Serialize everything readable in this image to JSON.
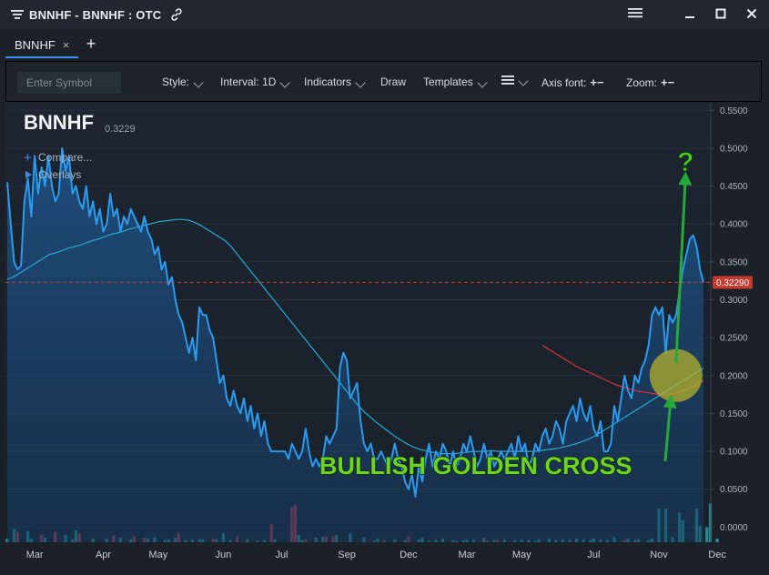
{
  "window": {
    "title": "BNNHF - BNNHF : OTC"
  },
  "tabs": [
    {
      "label": "BNNHF",
      "close": "×"
    }
  ],
  "tab_add": "+",
  "toolbar": {
    "symbol_placeholder": "Enter Symbol",
    "style_label": "Style:",
    "interval_label": "Interval: 1D",
    "indicators_label": "Indicators",
    "draw_label": "Draw",
    "templates_label": "Templates",
    "axis_font_label": "Axis font:",
    "zoom_label": "Zoom:",
    "plus_minus": "+−"
  },
  "chart_header": {
    "symbol": "BNNHF",
    "last": "0.3229",
    "compare_label": "Compare...",
    "overlays_label": "Overlays"
  },
  "colors": {
    "price_line": "#2b9bf0",
    "area_top": "#1f5a94",
    "ma_fast": "#2aa7d9",
    "ma_slow": "#d0303a",
    "price_tag": "#c63a2e",
    "annotation_text": "#6fd322",
    "arrow": "#26a83a",
    "circle": "#b8b52a",
    "volume_up": "#2c8c95",
    "volume_down": "#b0394a"
  },
  "chart_data": {
    "type": "line",
    "title": "BNNHF",
    "last_price_tag": "0.32290",
    "annotation": "BULLISH GOLDEN CROSS",
    "question_mark": "?",
    "ylim": [
      -0.02,
      0.56
    ],
    "yticks": [
      "0.5500",
      "0.5000",
      "0.4500",
      "0.4000",
      "0.3500",
      "0.3000",
      "0.2500",
      "0.2000",
      "0.1500",
      "0.1000",
      "0.0500",
      "0.0000"
    ],
    "ytick_values": [
      0.55,
      0.5,
      0.45,
      0.4,
      0.35,
      0.3,
      0.25,
      0.2,
      0.15,
      0.1,
      0.05,
      0.0
    ],
    "xticks": [
      "Mar",
      "Apr",
      "May",
      "Jun",
      "Jul",
      "Sep",
      "Dec",
      "Mar",
      "May",
      "Jul",
      "Nov",
      "Dec"
    ],
    "xtick_index": [
      8,
      28,
      44,
      63,
      80,
      99,
      117,
      134,
      150,
      171,
      190,
      207
    ],
    "price": [
      0.455,
      0.4,
      0.35,
      0.34,
      0.345,
      0.43,
      0.46,
      0.41,
      0.49,
      0.44,
      0.475,
      0.45,
      0.49,
      0.45,
      0.43,
      0.44,
      0.5,
      0.47,
      0.49,
      0.44,
      0.45,
      0.43,
      0.42,
      0.45,
      0.41,
      0.43,
      0.4,
      0.42,
      0.39,
      0.4,
      0.44,
      0.41,
      0.42,
      0.39,
      0.41,
      0.4,
      0.42,
      0.41,
      0.4,
      0.39,
      0.41,
      0.39,
      0.38,
      0.36,
      0.37,
      0.34,
      0.35,
      0.32,
      0.33,
      0.3,
      0.28,
      0.27,
      0.25,
      0.23,
      0.25,
      0.22,
      0.29,
      0.28,
      0.28,
      0.26,
      0.25,
      0.22,
      0.19,
      0.2,
      0.17,
      0.16,
      0.18,
      0.16,
      0.15,
      0.17,
      0.14,
      0.16,
      0.13,
      0.15,
      0.12,
      0.14,
      0.11,
      0.1,
      0.1,
      0.1,
      0.1,
      0.1,
      0.09,
      0.11,
      0.1,
      0.09,
      0.1,
      0.13,
      0.1,
      0.08,
      0.09,
      0.08,
      0.09,
      0.12,
      0.11,
      0.12,
      0.13,
      0.21,
      0.23,
      0.22,
      0.17,
      0.18,
      0.19,
      0.14,
      0.11,
      0.1,
      0.11,
      0.09,
      0.09,
      0.1,
      0.09,
      0.08,
      0.09,
      0.11,
      0.09,
      0.08,
      0.06,
      0.05,
      0.07,
      0.04,
      0.08,
      0.06,
      0.09,
      0.11,
      0.08,
      0.1,
      0.09,
      0.11,
      0.1,
      0.08,
      0.1,
      0.08,
      0.09,
      0.11,
      0.1,
      0.12,
      0.1,
      0.08,
      0.09,
      0.11,
      0.09,
      0.1,
      0.08,
      0.09,
      0.1,
      0.09,
      0.1,
      0.11,
      0.09,
      0.12,
      0.1,
      0.11,
      0.08,
      0.09,
      0.11,
      0.1,
      0.12,
      0.13,
      0.11,
      0.12,
      0.14,
      0.13,
      0.11,
      0.14,
      0.15,
      0.16,
      0.14,
      0.17,
      0.15,
      0.14,
      0.16,
      0.13,
      0.12,
      0.14,
      0.1,
      0.1,
      0.11,
      0.16,
      0.14,
      0.17,
      0.2,
      0.18,
      0.17,
      0.2,
      0.19,
      0.21,
      0.22,
      0.24,
      0.28,
      0.29,
      0.28,
      0.29,
      0.23,
      0.28,
      0.27,
      0.28,
      0.31,
      0.34,
      0.36,
      0.38,
      0.385,
      0.37,
      0.34,
      0.323
    ],
    "ma_fast": [
      0.327,
      0.33,
      0.335,
      0.34,
      0.345,
      0.35,
      0.355,
      0.36,
      0.362,
      0.365,
      0.368,
      0.37,
      0.372,
      0.375,
      0.378,
      0.38,
      0.383,
      0.386,
      0.388,
      0.39,
      0.393,
      0.395,
      0.397,
      0.399,
      0.401,
      0.403,
      0.404,
      0.405,
      0.406,
      0.406,
      0.405,
      0.402,
      0.398,
      0.393,
      0.388,
      0.383,
      0.378,
      0.37,
      0.36,
      0.35,
      0.34,
      0.33,
      0.32,
      0.31,
      0.3,
      0.29,
      0.28,
      0.27,
      0.26,
      0.25,
      0.24,
      0.23,
      0.22,
      0.21,
      0.2,
      0.19,
      0.18,
      0.17,
      0.16,
      0.152,
      0.145,
      0.138,
      0.132,
      0.126,
      0.12,
      0.115,
      0.11,
      0.106,
      0.103,
      0.101,
      0.099,
      0.098,
      0.097,
      0.097,
      0.097,
      0.098,
      0.099,
      0.1,
      0.1,
      0.1,
      0.101,
      0.1,
      0.1,
      0.1,
      0.1,
      0.1,
      0.1,
      0.1,
      0.101,
      0.102,
      0.103,
      0.104,
      0.106,
      0.108,
      0.11,
      0.113,
      0.116,
      0.12,
      0.125,
      0.13,
      0.135,
      0.14,
      0.145,
      0.15,
      0.155,
      0.16,
      0.165,
      0.17,
      0.175,
      0.18,
      0.185,
      0.19,
      0.195,
      0.2,
      0.205,
      0.21
    ],
    "ma_fast_start": 0,
    "ma_slow": [
      0.24,
      0.236,
      0.232,
      0.228,
      0.224,
      0.22,
      0.216,
      0.212,
      0.209,
      0.206,
      0.203,
      0.2,
      0.197,
      0.194,
      0.191,
      0.188,
      0.186,
      0.184,
      0.182,
      0.18,
      0.179,
      0.178,
      0.177,
      0.176,
      0.175,
      0.175,
      0.175,
      0.176,
      0.178,
      0.18,
      0.183,
      0.186,
      0.19,
      0.193
    ],
    "ma_slow_start": 156,
    "volume": [
      0.005,
      0.0,
      0.018,
      0.014,
      0.0,
      0.0,
      0.015,
      0.005,
      0.0,
      0.0,
      0.01,
      0.006,
      0.0,
      0.0,
      0.014,
      0.0,
      0.0,
      0.01,
      0.0,
      0.004,
      0.016,
      0.012,
      0.0,
      0.0,
      0.0,
      0.005,
      0.0,
      0.0,
      0.0,
      0.005,
      0.0,
      0.009,
      0.0,
      0.006,
      0.0,
      0.0,
      0.004,
      0.008,
      0.0,
      0.0,
      0.006,
      0.005,
      0.0,
      0.007,
      0.0,
      0.0,
      0.003,
      0.004,
      0.0,
      0.006,
      0.012,
      0.0,
      0.003,
      0.0,
      0.004,
      0.0,
      0.004,
      0.004,
      0.0,
      0.0,
      0.005,
      0.004,
      0.0,
      0.012,
      0.0,
      0.003,
      0.0,
      0.008,
      0.0,
      0.0,
      0.004,
      0.0,
      0.0,
      0.002,
      0.0,
      0.003,
      0.0,
      0.024,
      0.004,
      0.0,
      0.0,
      0.0,
      0.0,
      0.047,
      0.05,
      0.01,
      0.003,
      0.004,
      0.0,
      0.0,
      0.006,
      0.0,
      0.007,
      0.007,
      0.0,
      0.008,
      0.01,
      0.0,
      0.0,
      0.0,
      0.012,
      0.0,
      0.0,
      0.0,
      0.006,
      0.0,
      0.0,
      0.002,
      0.005,
      0.0,
      0.003,
      0.0,
      0.0,
      0.004,
      0.0,
      0.0,
      0.003,
      0.008,
      0.0,
      0.0,
      0.004,
      0.006,
      0.0,
      0.002,
      0.0,
      0.003,
      0.0,
      0.005,
      0.0,
      0.0,
      0.003,
      0.002,
      0.0,
      0.003,
      0.004,
      0.0,
      0.004,
      0.0,
      0.0,
      0.006,
      0.002,
      0.0,
      0.003,
      0.003,
      0.0,
      0.004,
      0.0,
      0.0,
      0.003,
      0.0,
      0.004,
      0.0,
      0.003,
      0.0,
      0.002,
      0.004,
      0.0,
      0.0,
      0.005,
      0.0,
      0.003,
      0.0,
      0.004,
      0.0,
      0.003,
      0.0,
      0.005,
      0.0,
      0.004,
      0.0,
      0.003,
      0.005,
      0.0,
      0.004,
      0.0,
      0.003,
      0.0,
      0.007,
      0.0,
      0.0,
      0.003,
      0.005,
      0.0,
      0.003,
      0.004,
      0.0,
      0.0,
      0.003,
      0.005,
      0.0,
      0.045,
      0.0,
      0.045,
      0.0,
      0.007,
      0.0,
      0.04,
      0.03,
      0.0,
      0.0,
      0.0,
      0.045,
      0.022,
      0.0,
      0.02,
      0.052,
      0.0,
      0.005,
      0.0
    ],
    "volume_down": [
      0,
      0,
      0,
      1,
      0,
      0,
      0,
      0,
      0,
      0,
      1,
      0,
      0,
      0,
      1,
      0,
      0,
      0,
      0,
      0,
      0,
      1,
      0,
      0,
      0,
      0,
      0,
      0,
      0,
      0,
      0,
      1,
      0,
      0,
      0,
      0,
      0,
      1,
      0,
      0,
      1,
      0,
      0,
      0,
      0,
      0,
      0,
      0,
      0,
      0,
      1,
      0,
      0,
      0,
      0,
      0,
      0,
      0,
      0,
      0,
      1,
      0,
      0,
      0,
      0,
      0,
      0,
      1,
      0,
      0,
      0,
      0,
      0,
      0,
      0,
      0,
      0,
      1,
      0,
      0,
      0,
      0,
      0,
      1,
      1,
      0,
      0,
      1,
      0,
      0,
      0,
      0,
      0,
      1,
      0,
      1,
      0,
      0,
      0,
      0,
      0,
      0,
      0,
      0,
      0,
      0,
      0,
      0,
      0,
      0,
      1,
      0,
      0,
      0,
      0,
      0,
      0,
      1,
      0,
      0,
      0,
      0,
      0,
      0,
      0,
      0,
      0,
      0,
      0,
      0,
      0,
      0,
      0,
      0,
      0,
      0,
      0,
      0,
      0,
      0,
      1,
      0,
      0,
      1,
      0,
      0,
      0,
      0,
      0,
      0,
      0,
      0,
      0,
      0,
      0,
      0,
      0,
      0,
      0,
      0,
      0,
      0,
      0,
      0,
      0,
      0,
      0,
      0,
      0,
      0,
      0,
      0,
      0,
      0,
      0,
      0,
      0,
      0,
      0,
      0,
      1,
      0,
      0,
      0,
      0,
      0,
      0,
      0,
      0,
      0,
      0,
      0,
      0,
      0,
      0,
      1,
      0,
      0,
      0,
      0,
      1,
      0,
      0,
      0,
      0,
      0,
      0,
      0,
      0,
      1,
      0,
      1,
      0,
      0
    ]
  }
}
